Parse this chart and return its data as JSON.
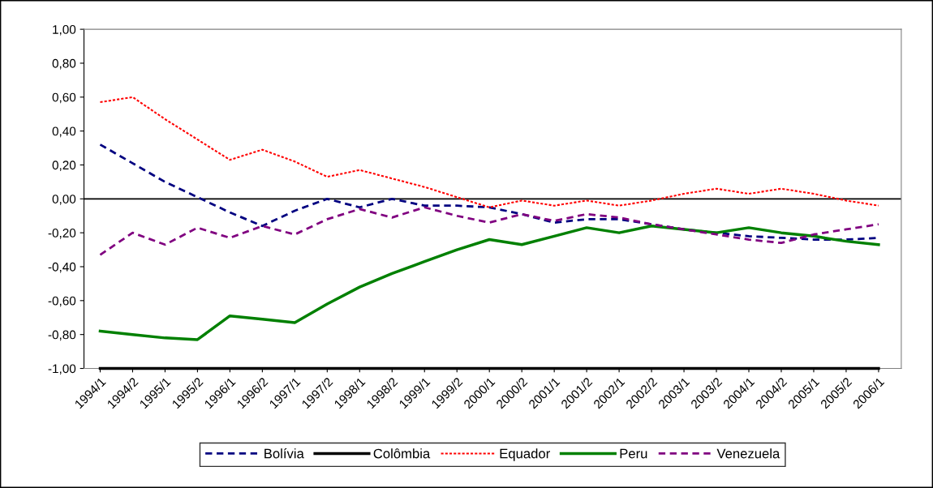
{
  "chart_data": {
    "type": "line",
    "categories": [
      "1994/1",
      "1994/2",
      "1995/1",
      "1995/2",
      "1996/1",
      "1996/2",
      "1997/1",
      "1997/2",
      "1998/1",
      "1998/2",
      "1999/1",
      "1999/2",
      "2000/1",
      "2000/2",
      "2001/1",
      "2001/2",
      "2002/1",
      "2002/2",
      "2003/1",
      "2003/2",
      "2004/1",
      "2004/2",
      "2005/1",
      "2005/2",
      "2006/1"
    ],
    "series": [
      {
        "name": "Bolívia",
        "color": "#000080",
        "line_style": "dashed",
        "marker": "none",
        "values": [
          0.32,
          0.21,
          0.1,
          0.01,
          -0.08,
          -0.16,
          -0.07,
          0.0,
          -0.05,
          0.0,
          -0.04,
          -0.04,
          -0.05,
          -0.09,
          -0.14,
          -0.12,
          -0.12,
          -0.15,
          -0.18,
          -0.2,
          -0.22,
          -0.23,
          -0.24,
          -0.24,
          -0.23
        ]
      },
      {
        "name": "Colômbia",
        "color": "#000000",
        "line_style": "solid",
        "marker": "none",
        "values": [
          -1,
          -1,
          -1,
          -1,
          -1,
          -1,
          -1,
          -1,
          -1,
          -1,
          -1,
          -1,
          -1,
          -1,
          -1,
          -1,
          -1,
          -1,
          -1,
          -1,
          -1,
          -1,
          -1,
          -1,
          -1
        ]
      },
      {
        "name": "Equador",
        "color": "#ff0000",
        "line_style": "dotted",
        "marker": "none",
        "values": [
          0.57,
          0.6,
          0.47,
          0.35,
          0.23,
          0.29,
          0.22,
          0.13,
          0.17,
          0.12,
          0.07,
          0.01,
          -0.05,
          -0.01,
          -0.04,
          -0.01,
          -0.04,
          -0.01,
          0.03,
          0.06,
          0.03,
          0.06,
          0.03,
          -0.01,
          -0.04
        ]
      },
      {
        "name": "Peru",
        "color": "#008000",
        "line_style": "solid",
        "marker": "none",
        "values": [
          -0.78,
          -0.8,
          -0.82,
          -0.83,
          -0.69,
          -0.71,
          -0.73,
          -0.62,
          -0.52,
          -0.44,
          -0.37,
          -0.3,
          -0.24,
          -0.27,
          -0.22,
          -0.17,
          -0.2,
          -0.16,
          -0.18,
          -0.2,
          -0.17,
          -0.2,
          -0.22,
          -0.25,
          -0.27
        ]
      },
      {
        "name": "Venezuela",
        "color": "#800080",
        "line_style": "dashed",
        "marker": "none",
        "values": [
          -0.33,
          -0.2,
          -0.27,
          -0.17,
          -0.23,
          -0.16,
          -0.21,
          -0.12,
          -0.06,
          -0.11,
          -0.05,
          -0.1,
          -0.14,
          -0.09,
          -0.13,
          -0.09,
          -0.11,
          -0.15,
          -0.18,
          -0.21,
          -0.24,
          -0.26,
          -0.21,
          -0.18,
          -0.15
        ]
      }
    ],
    "ylim": [
      -1,
      1
    ],
    "yticks": [
      {
        "value": -1,
        "label": "-1,00"
      },
      {
        "value": -0.8,
        "label": "-0,80"
      },
      {
        "value": -0.6,
        "label": "-0,60"
      },
      {
        "value": -0.4,
        "label": "-0,40"
      },
      {
        "value": -0.2,
        "label": "-0,20"
      },
      {
        "value": 0,
        "label": "0,00"
      },
      {
        "value": 0.2,
        "label": "0,20"
      },
      {
        "value": 0.4,
        "label": "0,40"
      },
      {
        "value": 0.6,
        "label": "0,60"
      },
      {
        "value": 0.8,
        "label": "0,80"
      },
      {
        "value": 1,
        "label": "1,00"
      }
    ],
    "ref_lines": [
      {
        "axis": "y",
        "value": 0,
        "color": "#000000",
        "line_style": "solid"
      }
    ],
    "grid": false,
    "legend": "bottom"
  }
}
